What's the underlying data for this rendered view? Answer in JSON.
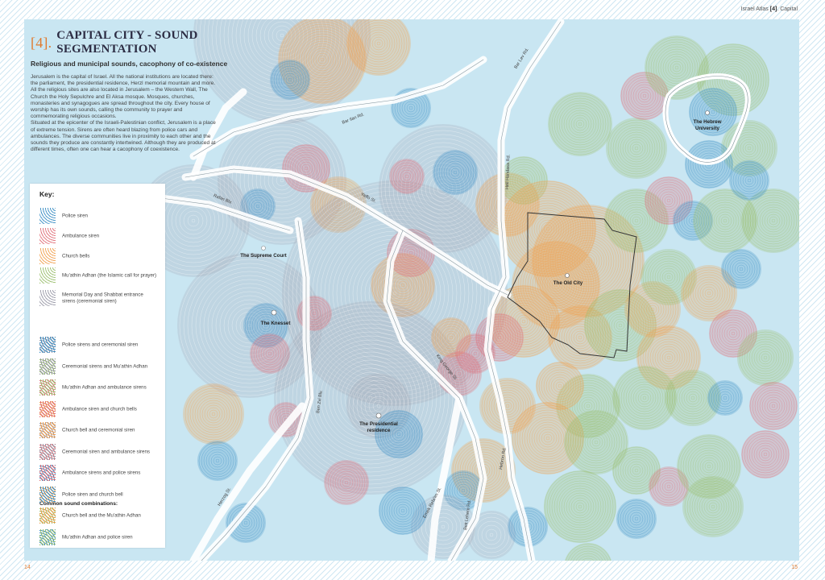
{
  "header": {
    "atlas": "Israel Atlas",
    "chapter_num": "[4]",
    "chapter_name": "Capital"
  },
  "title": {
    "number": "[4].",
    "text": "CAPITAL CITY - SOUND SEGMENTATION",
    "subtitle": "Religious and municipal sounds, cacophony of co-existence"
  },
  "intro": [
    "Jerusalem is the capital of Israel. All the national institutions are located there: the parliament, the presidential residence, Herzl memorial mountain and more.",
    "All the religious sites are also located in Jerusalem – the Western Wall, The Church the Holy Sepulchre and El Aksa mosque. Mosques, churches, monasteries and synagogues are spread throughout the city. Every house of worship has its own sounds, calling the community to prayer and commemorating religious occasions.",
    "Situated at the epicenter of the Israeli-Palestinian conflict, Jerusalem is a place of extreme tension. Sirens are often heard blazing from police cars and ambulances. The diverse communities live in proximity to each other and the sounds they produce are constantly intertwined. Although they are produced at different times, often one can hear a cacophony of coexistence."
  ],
  "key": {
    "title": "Key:",
    "items": [
      {
        "label": "Police siren",
        "color": "#3d8fc4"
      },
      {
        "label": "Ambulance siren",
        "color": "#e0707a"
      },
      {
        "label": "Church bells",
        "color": "#f0a050"
      },
      {
        "label": "Mu'athin Adhan (the Islamic call for prayer)",
        "color": "#9cc070"
      },
      {
        "label": "Memorial Day and Shabbat entrance sirens (ceremonial siren)",
        "color": "#9a9aa8"
      }
    ],
    "combos_title": "Common sound combinations:",
    "combos": [
      {
        "label": "Police sirens and ceremonial siren",
        "c1": "#3d8fc4",
        "c2": "#9a9aa8"
      },
      {
        "label": "Ceremonial sirens and Mu'athin Adhan",
        "c1": "#9a9aa8",
        "c2": "#9cc070"
      },
      {
        "label": "Mu'athin Adhan and ambulance sirens",
        "c1": "#9cc070",
        "c2": "#e0707a"
      },
      {
        "label": "Ambulance siren and church bells",
        "c1": "#e0707a",
        "c2": "#f0a050"
      },
      {
        "label": "Church bell and ceremonial siren",
        "c1": "#f0a050",
        "c2": "#9a9aa8"
      },
      {
        "label": "Ceremonial siren and ambulance sirens",
        "c1": "#9a9aa8",
        "c2": "#e0707a"
      },
      {
        "label": "Ambulance sirens and police sirens",
        "c1": "#e0707a",
        "c2": "#3d8fc4"
      },
      {
        "label": "Police siren and church bell",
        "c1": "#3d8fc4",
        "c2": "#f0a050"
      },
      {
        "label": "Church bell and the Mu'athin Adhan",
        "c1": "#f0a050",
        "c2": "#9cc070"
      },
      {
        "label": "Mu'athin Adhan and police siren",
        "c1": "#9cc070",
        "c2": "#3d8fc4"
      }
    ]
  },
  "places": {
    "supreme_court": "The Supreme Court",
    "knesset": "The Knesset",
    "presidential": "The Presidential residence",
    "old_city": "The Old City",
    "hebrew_university": "The Hebrew University"
  },
  "roads": {
    "bar_lev": "Bar Lev Rd.",
    "bar_ilan": "Bar Ilan Rd.",
    "rabin": "Rabin Blv.",
    "yaffo": "Yaffo St.",
    "heil_handasa": "Heil Handasa Rd.",
    "king_george": "King George St.",
    "ben_zvi": "Ben Zvi Blv.",
    "herzog": "Herzog St.",
    "emek_refaim": "Emek Refa'im St.",
    "beit_lehem": "Beit Lehem Rd.",
    "hebron": "Hebron Rd."
  },
  "page_numbers": {
    "left": "14",
    "right": "15"
  }
}
